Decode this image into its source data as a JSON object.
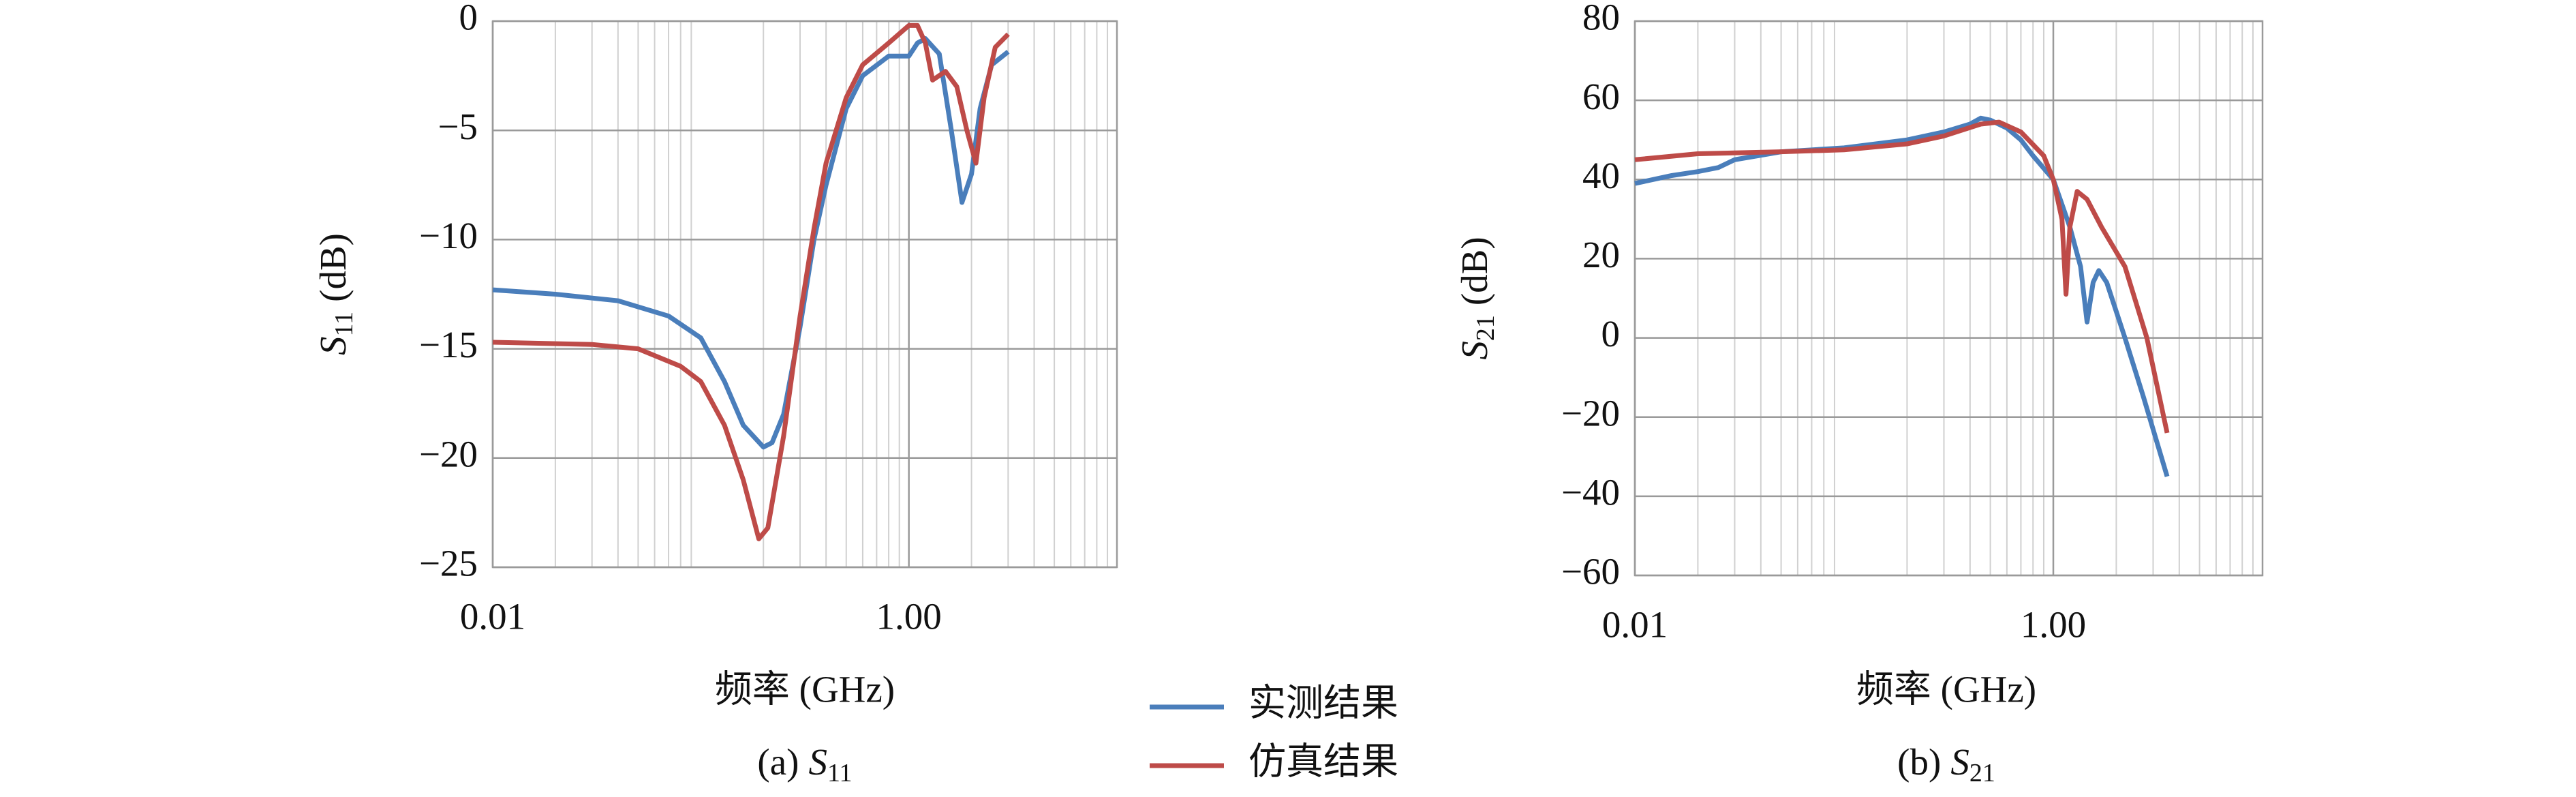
{
  "chart_data": [
    {
      "type": "line",
      "xscale": "log",
      "grid": true,
      "xlabel": "频率 (GHz)",
      "ylabel_symbol": "S",
      "ylabel_sub": "11",
      "ylabel_unit": "(dB)",
      "caption_prefix": "(a)",
      "caption_symbol": "S",
      "caption_sub": "11",
      "xlim": [
        0.01,
        10
      ],
      "xticks": [
        0.01,
        {
          "value": 1,
          "label": "1.00"
        }
      ],
      "ylim": [
        -25,
        0
      ],
      "yticks": [
        {
          "value": -25,
          "label": "−25"
        },
        {
          "value": -20,
          "label": "−20"
        },
        {
          "value": -15,
          "label": "−15"
        },
        {
          "value": -10,
          "label": "−10"
        },
        {
          "value": -5,
          "label": "−5"
        },
        0
      ],
      "series": [
        {
          "name": "实测结果",
          "color": "#4a7ebb",
          "x": [
            0.01,
            0.02,
            0.04,
            0.07,
            0.1,
            0.13,
            0.16,
            0.2,
            0.22,
            0.25,
            0.3,
            0.35,
            0.4,
            0.5,
            0.6,
            0.8,
            1.0,
            1.1,
            1.2,
            1.4,
            1.6,
            1.8,
            2.0,
            2.2,
            2.5,
            3.0
          ],
          "values": [
            -12.3,
            -12.5,
            -12.8,
            -13.5,
            -14.5,
            -16.5,
            -18.5,
            -19.5,
            -19.3,
            -18,
            -14,
            -10,
            -7.5,
            -4,
            -2.5,
            -1.6,
            -1.6,
            -1,
            -0.8,
            -1.5,
            -5,
            -8.3,
            -7,
            -4,
            -2,
            -1.4
          ]
        },
        {
          "name": "仿真结果",
          "color": "#be4b48",
          "x": [
            0.01,
            0.03,
            0.05,
            0.08,
            0.1,
            0.13,
            0.16,
            0.19,
            0.21,
            0.25,
            0.3,
            0.35,
            0.4,
            0.5,
            0.6,
            0.8,
            1.0,
            1.1,
            1.2,
            1.3,
            1.5,
            1.7,
            1.9,
            2.1,
            2.3,
            2.6,
            3.0
          ],
          "values": [
            -14.7,
            -14.8,
            -15,
            -15.8,
            -16.5,
            -18.5,
            -21,
            -23.7,
            -23.2,
            -19,
            -13.5,
            -9.5,
            -6.5,
            -3.5,
            -2,
            -1,
            -0.2,
            -0.2,
            -1,
            -2.7,
            -2.3,
            -3,
            -5,
            -6.5,
            -3.5,
            -1.2,
            -0.6
          ]
        }
      ]
    },
    {
      "type": "line",
      "xscale": "log",
      "grid": true,
      "xlabel": "频率 (GHz)",
      "ylabel_symbol": "S",
      "ylabel_sub": "21",
      "ylabel_unit": "(dB)",
      "caption_prefix": "(b)",
      "caption_symbol": "S",
      "caption_sub": "21",
      "xlim": [
        0.01,
        10
      ],
      "xticks": [
        0.01,
        {
          "value": 1,
          "label": "1.00"
        }
      ],
      "ylim": [
        -60,
        80
      ],
      "yticks": [
        {
          "value": -60,
          "label": "−60"
        },
        {
          "value": -40,
          "label": "−40"
        },
        {
          "value": -20,
          "label": "−20"
        },
        0,
        20,
        40,
        60,
        80
      ],
      "series": [
        {
          "color": "#4a7ebb",
          "x": [
            0.01,
            0.015,
            0.02,
            0.025,
            0.03,
            0.05,
            0.1,
            0.2,
            0.3,
            0.4,
            0.45,
            0.5,
            0.6,
            0.7,
            0.8,
            1.0,
            1.2,
            1.35,
            1.45,
            1.55,
            1.65,
            1.8,
            2.2,
            2.7,
            3.5
          ],
          "values": [
            39,
            41,
            42,
            43,
            45,
            47,
            48,
            50,
            52,
            54,
            55.5,
            55,
            53,
            50,
            46,
            40,
            28,
            18,
            4,
            14,
            17,
            14,
            0,
            -15,
            -35
          ]
        },
        {
          "color": "#be4b48",
          "x": [
            0.01,
            0.02,
            0.05,
            0.1,
            0.2,
            0.3,
            0.45,
            0.55,
            0.7,
            0.9,
            1.0,
            1.1,
            1.15,
            1.2,
            1.3,
            1.45,
            1.7,
            2.2,
            2.8,
            3.5
          ],
          "values": [
            45,
            46.5,
            47,
            47.5,
            49,
            51,
            54,
            54.5,
            52,
            46,
            40,
            30,
            11,
            28,
            37,
            35,
            28,
            18,
            0,
            -24
          ]
        }
      ]
    }
  ]
}
